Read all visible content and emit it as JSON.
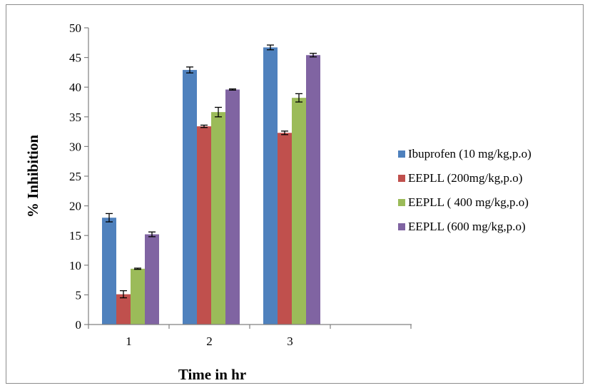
{
  "chart_data": {
    "type": "bar",
    "title": "",
    "xlabel": "Time in hr",
    "ylabel": "% Inhibition",
    "categories": [
      "1",
      "2",
      "3"
    ],
    "ylim": [
      0,
      50
    ],
    "yticks": [
      0,
      5,
      10,
      15,
      20,
      25,
      30,
      35,
      40,
      45,
      50
    ],
    "grid": false,
    "legend_position": "right",
    "error_bars": true,
    "series": [
      {
        "name": "Ibuprofen (10 mg/kg,p.o)",
        "color": "#4f81bd",
        "values": [
          18.0,
          42.9,
          46.7
        ],
        "errors": [
          0.7,
          0.5,
          0.4
        ]
      },
      {
        "name": "EEPLL (200mg/kg,p.o)",
        "color": "#c0504d",
        "values": [
          5.1,
          33.4,
          32.3
        ],
        "errors": [
          0.6,
          0.2,
          0.3
        ]
      },
      {
        "name": "EEPLL ( 400 mg/kg,p.o)",
        "color": "#9bbb59",
        "values": [
          9.4,
          35.8,
          38.2
        ],
        "errors": [
          0.1,
          0.8,
          0.7
        ]
      },
      {
        "name": "EEPLL (600 mg/kg,p.o)",
        "color": "#8064a2",
        "values": [
          15.2,
          39.6,
          45.4
        ],
        "errors": [
          0.4,
          0.1,
          0.3
        ]
      }
    ]
  }
}
